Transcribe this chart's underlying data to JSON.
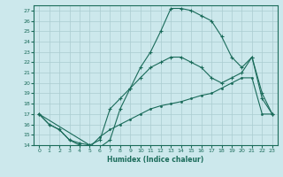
{
  "xlabel": "Humidex (Indice chaleur)",
  "ylabel": "",
  "bg_color": "#cce8ec",
  "grid_color": "#aaccd0",
  "line_color": "#1a6b5a",
  "xlim": [
    -0.5,
    23.5
  ],
  "ylim": [
    14,
    27.5
  ],
  "xticks": [
    0,
    1,
    2,
    3,
    4,
    5,
    6,
    7,
    8,
    9,
    10,
    11,
    12,
    13,
    14,
    15,
    16,
    17,
    18,
    19,
    20,
    21,
    22,
    23
  ],
  "yticks": [
    14,
    15,
    16,
    17,
    18,
    19,
    20,
    21,
    22,
    23,
    24,
    25,
    26,
    27
  ],
  "line1_x": [
    0,
    1,
    2,
    3,
    4,
    5,
    6,
    7,
    8,
    9,
    10,
    11,
    12,
    13,
    14,
    15,
    16,
    17,
    18,
    19,
    20,
    21,
    22,
    23
  ],
  "line1_y": [
    17,
    16,
    15.5,
    14.5,
    14.2,
    14.0,
    13.8,
    14.5,
    17.5,
    19.5,
    21.5,
    23,
    25,
    27.2,
    27.2,
    27.0,
    26.5,
    26.0,
    24.5,
    22.5,
    21.5,
    22.5,
    18.5,
    17.0
  ],
  "line2_x": [
    0,
    5,
    6,
    7,
    8,
    9,
    10,
    11,
    12,
    13,
    14,
    15,
    16,
    17,
    18,
    19,
    20,
    21,
    22,
    23
  ],
  "line2_y": [
    17,
    14.0,
    14.5,
    17.5,
    18.5,
    19.5,
    20.5,
    21.5,
    22.0,
    22.5,
    22.5,
    22.0,
    21.5,
    20.5,
    20.0,
    20.5,
    21.0,
    22.5,
    19.0,
    17.0
  ],
  "line3_x": [
    0,
    1,
    2,
    3,
    4,
    5,
    6,
    7,
    8,
    9,
    10,
    11,
    12,
    13,
    14,
    15,
    16,
    17,
    18,
    19,
    20,
    21,
    22,
    23
  ],
  "line3_y": [
    17,
    16,
    15.5,
    14.5,
    14.0,
    13.8,
    14.8,
    15.5,
    16.0,
    16.5,
    17.0,
    17.5,
    17.8,
    18.0,
    18.2,
    18.5,
    18.8,
    19.0,
    19.5,
    20.0,
    20.5,
    20.5,
    17.0,
    17.0
  ]
}
